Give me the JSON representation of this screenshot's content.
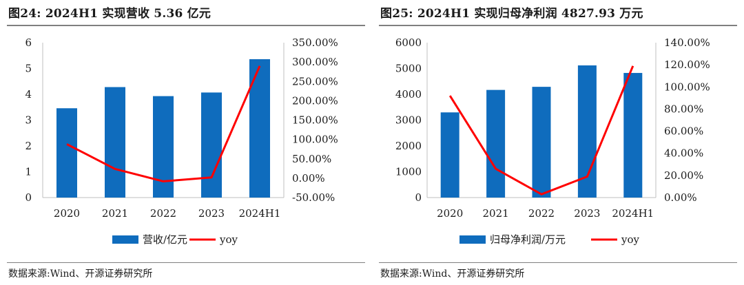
{
  "charts": [
    {
      "figure_title": "图24:  2024H1 实现营收 5.36 亿元",
      "source": "数据来源:Wind、开源证券研究所",
      "colors": {
        "bar": "#0f6cbd",
        "line": "#ff0000"
      },
      "legend": [
        {
          "label": "营收/亿元",
          "kind": "bar"
        },
        {
          "label": "yoy",
          "kind": "line"
        }
      ]
    },
    {
      "figure_title": "图25:  2024H1 实现归母净利润 4827.93 万元",
      "source": "数据来源:Wind、开源证券研究所",
      "colors": {
        "bar": "#0f6cbd",
        "line": "#ff0000"
      },
      "legend": [
        {
          "label": "归母净利润/万元",
          "kind": "bar"
        },
        {
          "label": "yoy",
          "kind": "line"
        }
      ]
    }
  ],
  "chart_data": [
    {
      "type": "bar",
      "categories": [
        "2020",
        "2021",
        "2022",
        "2023",
        "2024H1"
      ],
      "series": [
        {
          "name": "营收/亿元",
          "type": "bar",
          "axis": "left",
          "values": [
            3.46,
            4.28,
            3.93,
            4.07,
            5.36
          ]
        },
        {
          "name": "yoy",
          "type": "line",
          "axis": "right",
          "values": [
            88.0,
            24.0,
            -8.0,
            2.0,
            290.0
          ]
        }
      ],
      "ylim": [
        0,
        6
      ],
      "yticks": [
        "0",
        "1",
        "2",
        "3",
        "4",
        "5",
        "6"
      ],
      "y2lim": [
        -50,
        350
      ],
      "y2ticks": [
        "-50.00%",
        "0.00%",
        "50.00%",
        "100.00%",
        "150.00%",
        "200.00%",
        "250.00%",
        "300.00%",
        "350.00%"
      ],
      "legend_position": "bottom",
      "grid": false
    },
    {
      "type": "bar",
      "categories": [
        "2020",
        "2021",
        "2022",
        "2023",
        "2024H1"
      ],
      "series": [
        {
          "name": "归母净利润/万元",
          "type": "bar",
          "axis": "left",
          "values": [
            3300,
            4170,
            4290,
            5120,
            4827.93
          ]
        },
        {
          "name": "yoy",
          "type": "line",
          "axis": "right",
          "values": [
            92.0,
            26.0,
            3.0,
            19.0,
            119.0
          ]
        }
      ],
      "ylim": [
        0,
        6000
      ],
      "yticks": [
        "0",
        "1000",
        "2000",
        "3000",
        "4000",
        "5000",
        "6000"
      ],
      "y2lim": [
        0,
        140
      ],
      "y2ticks": [
        "0.00%",
        "20.00%",
        "40.00%",
        "60.00%",
        "80.00%",
        "100.00%",
        "120.00%",
        "140.00%"
      ],
      "legend_position": "bottom",
      "grid": false
    }
  ]
}
